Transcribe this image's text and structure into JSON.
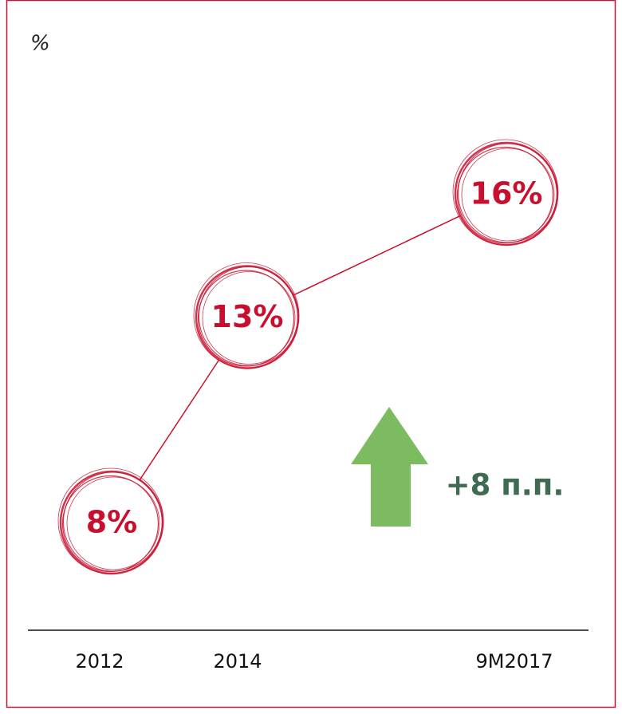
{
  "chart_data": {
    "type": "line",
    "unit_label": "%",
    "categories": [
      "2012",
      "2014",
      "9M2017"
    ],
    "values": [
      8,
      13,
      16
    ],
    "value_labels": [
      "8%",
      "13%",
      "16%"
    ],
    "color": "#c8102e",
    "annotation": "+8 п.п.",
    "annotation_color": "#3f6b50",
    "arrow_color": "#7dbb61"
  }
}
